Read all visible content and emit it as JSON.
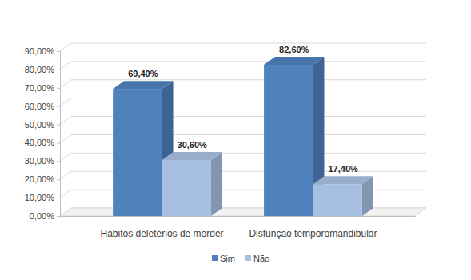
{
  "chart_data": {
    "type": "bar",
    "categories": [
      "Hábitos deletérios de morder",
      "Disfunção temporomandibular"
    ],
    "series": [
      {
        "name": "Sim",
        "color": "#4f81bd",
        "values": [
          69.4,
          82.6
        ],
        "value_labels": [
          "69,40%",
          "82,60%"
        ]
      },
      {
        "name": "Não",
        "color": "#a7c0e2",
        "values": [
          30.6,
          17.4
        ],
        "value_labels": [
          "30,60%",
          "17,40%"
        ]
      }
    ],
    "ylim": [
      0,
      90
    ],
    "yticks": [
      {
        "value": 0,
        "label": "0,00%"
      },
      {
        "value": 10,
        "label": "10,00%"
      },
      {
        "value": 20,
        "label": "20,00%"
      },
      {
        "value": 30,
        "label": "30,00%"
      },
      {
        "value": 40,
        "label": "40,00%"
      },
      {
        "value": 50,
        "label": "50,00%"
      },
      {
        "value": 60,
        "label": "60,00%"
      },
      {
        "value": 70,
        "label": "70,00%"
      },
      {
        "value": 80,
        "label": "80,00%"
      },
      {
        "value": 90,
        "label": "90,00%"
      }
    ],
    "grid": true,
    "data_labels": true,
    "legend": "bottom"
  }
}
